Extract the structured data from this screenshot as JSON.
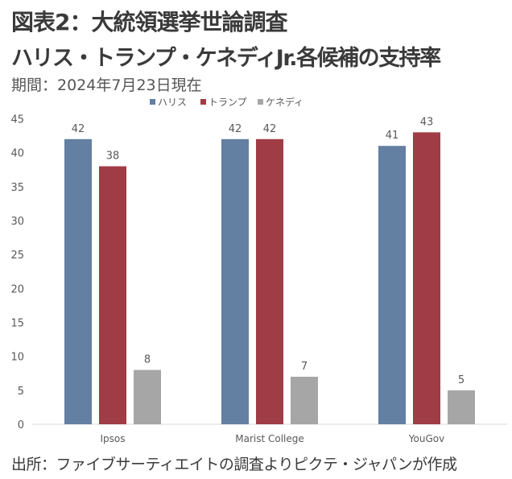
{
  "header": {
    "title": "図表2：大統領選挙世論調査",
    "subtitle": "ハリス・トランプ・ケネディJr.各候補の支持率",
    "period": "期間：2024年7月23日現在"
  },
  "footer": {
    "source": "出所：ファイブサーティエイトの調査よりピクテ・ジャパンが作成"
  },
  "chart_data": {
    "type": "bar",
    "title": "",
    "xlabel": "",
    "ylabel": "",
    "categories": [
      "Ipsos",
      "Marist College",
      "YouGov"
    ],
    "series": [
      {
        "name": "ハリス",
        "color": "#637fa1",
        "values": [
          42,
          42,
          41
        ]
      },
      {
        "name": "トランプ",
        "color": "#a03c45",
        "values": [
          38,
          42,
          43
        ]
      },
      {
        "name": "ケネディ",
        "color": "#a6a6a6",
        "values": [
          8,
          7,
          5
        ]
      }
    ],
    "ylim": [
      0,
      45
    ],
    "yticks": [
      0,
      5,
      10,
      15,
      20,
      25,
      30,
      35,
      40,
      45
    ],
    "grid": false,
    "legend": "top-center",
    "data_labels": true
  }
}
